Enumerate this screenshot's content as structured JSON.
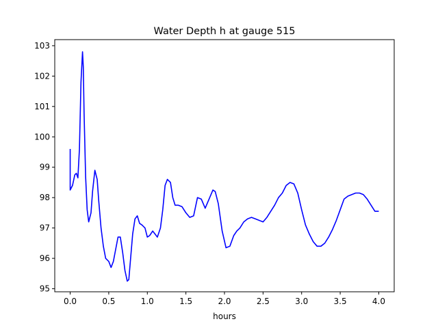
{
  "chart_data": {
    "type": "line",
    "title": "Water Depth h at gauge 515",
    "xlabel": "hours",
    "ylabel": "",
    "xlim": [
      -0.2,
      4.2
    ],
    "ylim": [
      94.9,
      103.2
    ],
    "xticks": [
      0.0,
      0.5,
      1.0,
      1.5,
      2.0,
      2.5,
      3.0,
      3.5,
      4.0
    ],
    "xtick_labels": [
      "0.0",
      "0.5",
      "1.0",
      "1.5",
      "2.0",
      "2.5",
      "3.0",
      "3.5",
      "4.0"
    ],
    "yticks": [
      95,
      96,
      97,
      98,
      99,
      100,
      101,
      102,
      103
    ],
    "ytick_labels": [
      "95",
      "96",
      "97",
      "98",
      "99",
      "100",
      "101",
      "102",
      "103"
    ],
    "grid": false,
    "series": [
      {
        "color": "#0000ff",
        "x": [
          0.0,
          0.0,
          0.01,
          0.03,
          0.06,
          0.08,
          0.1,
          0.12,
          0.14,
          0.16,
          0.17,
          0.18,
          0.2,
          0.22,
          0.24,
          0.27,
          0.29,
          0.32,
          0.35,
          0.37,
          0.4,
          0.43,
          0.46,
          0.5,
          0.53,
          0.56,
          0.59,
          0.62,
          0.65,
          0.68,
          0.71,
          0.74,
          0.76,
          0.78,
          0.81,
          0.84,
          0.87,
          0.9,
          0.93,
          0.97,
          1.0,
          1.03,
          1.07,
          1.1,
          1.13,
          1.17,
          1.2,
          1.23,
          1.26,
          1.3,
          1.33,
          1.36,
          1.4,
          1.45,
          1.5,
          1.55,
          1.6,
          1.65,
          1.7,
          1.75,
          1.8,
          1.85,
          1.88,
          1.92,
          1.97,
          2.02,
          2.07,
          2.12,
          2.16,
          2.2,
          2.25,
          2.3,
          2.35,
          2.4,
          2.45,
          2.5,
          2.55,
          2.6,
          2.65,
          2.7,
          2.75,
          2.8,
          2.85,
          2.9,
          2.95,
          3.0,
          3.05,
          3.1,
          3.15,
          3.2,
          3.25,
          3.3,
          3.35,
          3.4,
          3.45,
          3.5,
          3.55,
          3.6,
          3.65,
          3.7,
          3.75,
          3.8,
          3.85,
          3.9,
          3.95,
          4.0
        ],
        "y": [
          99.6,
          98.25,
          98.3,
          98.4,
          98.75,
          98.8,
          98.65,
          99.6,
          101.8,
          102.8,
          102.3,
          100.8,
          98.7,
          97.6,
          97.2,
          97.5,
          98.2,
          98.9,
          98.6,
          97.9,
          97.0,
          96.4,
          96.0,
          95.9,
          95.7,
          95.9,
          96.3,
          96.7,
          96.7,
          96.2,
          95.6,
          95.25,
          95.3,
          95.9,
          96.8,
          97.3,
          97.4,
          97.15,
          97.1,
          97.0,
          96.7,
          96.75,
          96.9,
          96.8,
          96.7,
          97.0,
          97.6,
          98.4,
          98.6,
          98.5,
          98.0,
          97.75,
          97.75,
          97.7,
          97.5,
          97.35,
          97.4,
          98.0,
          97.95,
          97.65,
          97.95,
          98.25,
          98.2,
          97.8,
          96.9,
          96.35,
          96.4,
          96.75,
          96.9,
          97.0,
          97.2,
          97.3,
          97.35,
          97.3,
          97.25,
          97.2,
          97.35,
          97.55,
          97.75,
          98.0,
          98.15,
          98.4,
          98.5,
          98.45,
          98.15,
          97.6,
          97.1,
          96.8,
          96.55,
          96.4,
          96.4,
          96.5,
          96.7,
          96.95,
          97.25,
          97.6,
          97.95,
          98.05,
          98.1,
          98.15,
          98.15,
          98.1,
          97.95,
          97.75,
          97.55,
          97.55
        ]
      }
    ]
  }
}
